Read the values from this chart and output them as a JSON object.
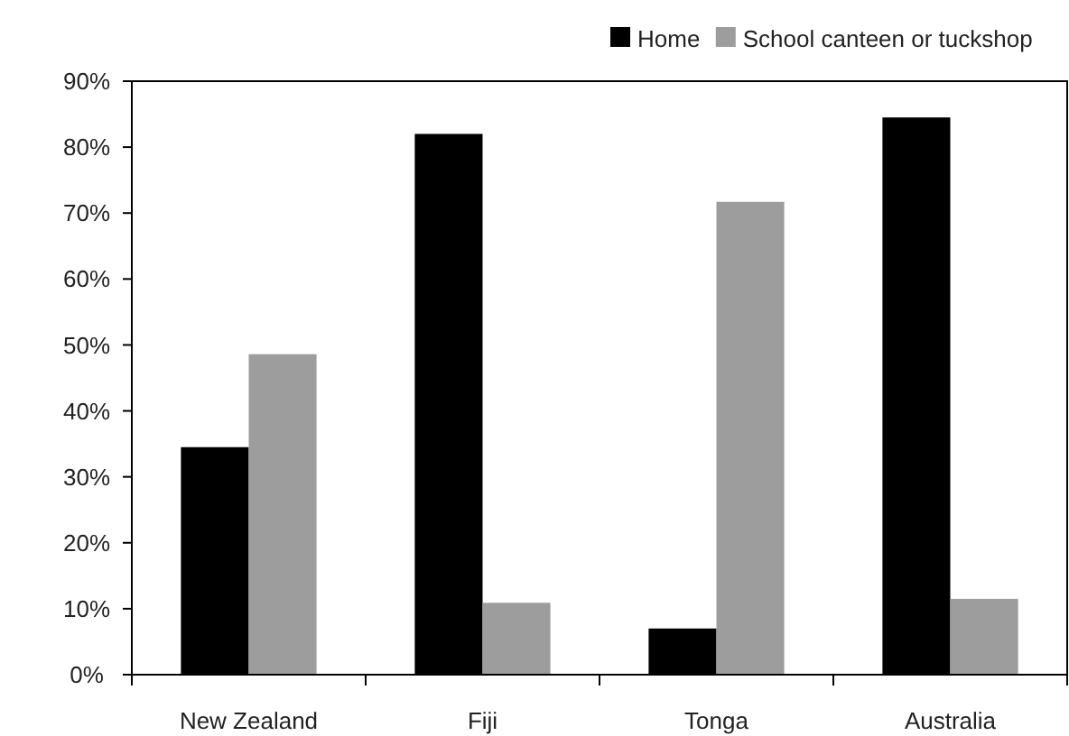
{
  "chart_data": {
    "type": "bar",
    "categories": [
      "New Zealand",
      "Fiji",
      "Tonga",
      "Australia"
    ],
    "series": [
      {
        "name": "Home",
        "color": "#000000",
        "values": [
          34.5,
          82,
          7,
          84.5
        ]
      },
      {
        "name": "School canteen or tuckshop",
        "color": "#9d9d9d",
        "values": [
          48.6,
          10.9,
          71.7,
          11.5
        ]
      }
    ],
    "ylim": [
      0,
      90
    ],
    "yticks": [
      {
        "value": 0,
        "label": "0%"
      },
      {
        "value": 10,
        "label": "10%"
      },
      {
        "value": 20,
        "label": "20%"
      },
      {
        "value": 30,
        "label": "30%"
      },
      {
        "value": 40,
        "label": "40%"
      },
      {
        "value": 50,
        "label": "50%"
      },
      {
        "value": 60,
        "label": "60%"
      },
      {
        "value": 70,
        "label": "70%"
      },
      {
        "value": 80,
        "label": "80%"
      },
      {
        "value": 90,
        "label": "90%"
      }
    ],
    "grid": false,
    "legend": "top right"
  }
}
